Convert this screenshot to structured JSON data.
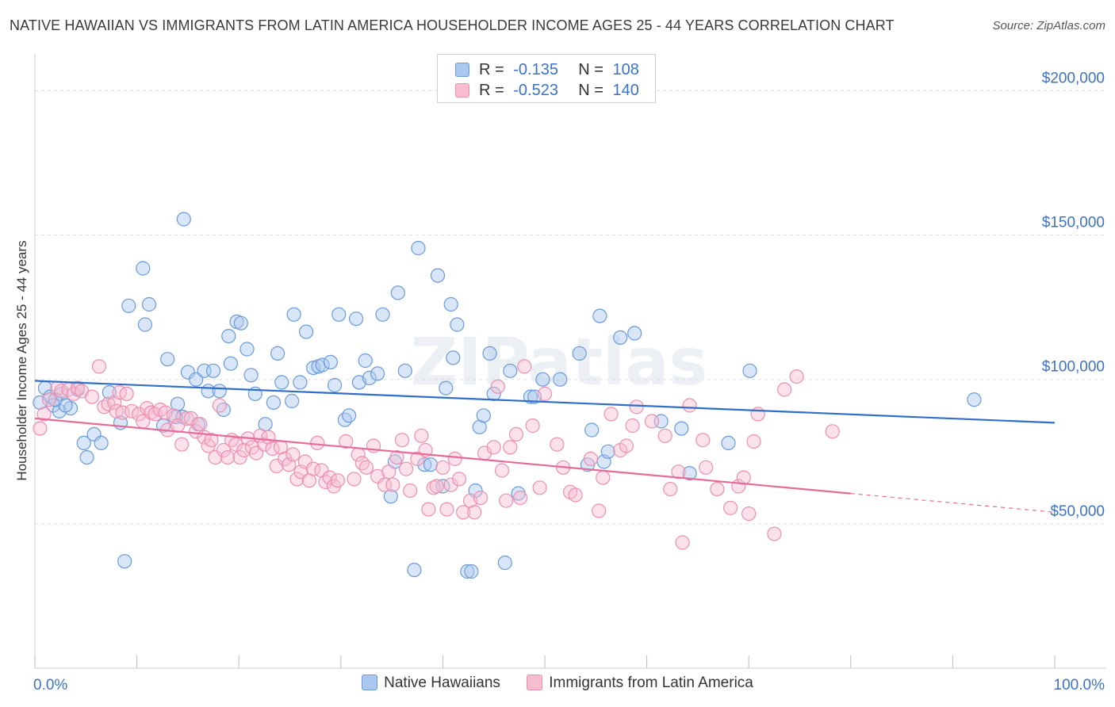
{
  "title": "NATIVE HAWAIIAN VS IMMIGRANTS FROM LATIN AMERICA HOUSEHOLDER INCOME AGES 25 - 44 YEARS CORRELATION CHART",
  "source": "Source: ZipAtlas.com",
  "watermark": "ZIPatlas",
  "legend": {
    "r_label": "R =",
    "n_label": "N =",
    "rows": [
      {
        "r": "-0.135",
        "n": "108"
      },
      {
        "r": "-0.523",
        "n": "140"
      }
    ]
  },
  "colors": {
    "blue_fill": "#aac8ef",
    "blue_stroke": "#6a9bd8",
    "blue_line": "#2f6fc9",
    "pink_fill": "#f6bdd0",
    "pink_stroke": "#ec8fb0",
    "pink_line": "#e66b98",
    "axis_text": "#3b72c7",
    "grid": "#dddddd"
  },
  "chart_data": {
    "type": "scatter",
    "ylabel": "Householder Income Ages 25 - 44 years",
    "x_tick_labels": [
      "0.0%",
      "100.0%"
    ],
    "y_tick_labels": [
      "$50,000",
      "$100,000",
      "$150,000",
      "$200,000"
    ],
    "y_ticks": [
      50000,
      100000,
      150000,
      200000
    ],
    "xlim": [
      0,
      100
    ],
    "ylim": [
      0,
      210000
    ],
    "grid": true,
    "legend_position": "top-center",
    "series": [
      {
        "name": "Native Hawaiians",
        "r": -0.135,
        "n": 108,
        "trend": {
          "x": [
            0,
            100
          ],
          "y": [
            99500,
            85000
          ],
          "dashed_from": null
        },
        "points": [
          [
            1.0,
            97000
          ],
          [
            1.5,
            94000
          ],
          [
            1.8,
            91000
          ],
          [
            2.4,
            89000
          ],
          [
            2.6,
            95000
          ],
          [
            3.5,
            90000
          ],
          [
            4.2,
            96500
          ],
          [
            4.8,
            78000
          ],
          [
            5.1,
            73000
          ],
          [
            5.8,
            81000
          ],
          [
            6.5,
            78000
          ],
          [
            7.3,
            95500
          ],
          [
            8.4,
            85000
          ],
          [
            8.8,
            37000
          ],
          [
            9.2,
            125500
          ],
          [
            10.6,
            138500
          ],
          [
            10.8,
            119000
          ],
          [
            11.2,
            126000
          ],
          [
            12.6,
            84000
          ],
          [
            13.0,
            107000
          ],
          [
            13.8,
            87000
          ],
          [
            14.0,
            91500
          ],
          [
            14.5,
            87000
          ],
          [
            14.6,
            155500
          ],
          [
            15.0,
            102500
          ],
          [
            15.8,
            100000
          ],
          [
            16.0,
            84500
          ],
          [
            16.6,
            103000
          ],
          [
            17.0,
            96000
          ],
          [
            17.5,
            103000
          ],
          [
            18.1,
            96000
          ],
          [
            18.5,
            89500
          ],
          [
            19.0,
            115000
          ],
          [
            19.2,
            105500
          ],
          [
            19.8,
            120000
          ],
          [
            20.2,
            119500
          ],
          [
            20.8,
            110500
          ],
          [
            21.2,
            101500
          ],
          [
            21.6,
            95000
          ],
          [
            22.6,
            84500
          ],
          [
            23.4,
            92000
          ],
          [
            23.8,
            109000
          ],
          [
            24.2,
            99000
          ],
          [
            25.2,
            92500
          ],
          [
            25.4,
            122500
          ],
          [
            26.0,
            99000
          ],
          [
            26.6,
            116500
          ],
          [
            27.3,
            104000
          ],
          [
            27.8,
            104500
          ],
          [
            28.2,
            105000
          ],
          [
            29.0,
            106000
          ],
          [
            29.4,
            98000
          ],
          [
            29.8,
            122500
          ],
          [
            30.4,
            86000
          ],
          [
            30.8,
            87500
          ],
          [
            31.5,
            121000
          ],
          [
            31.8,
            99000
          ],
          [
            32.4,
            106500
          ],
          [
            32.8,
            100500
          ],
          [
            33.6,
            102000
          ],
          [
            34.1,
            122500
          ],
          [
            34.9,
            59500
          ],
          [
            35.3,
            71500
          ],
          [
            35.6,
            130000
          ],
          [
            36.3,
            103000
          ],
          [
            37.2,
            34000
          ],
          [
            37.6,
            145500
          ],
          [
            38.2,
            70500
          ],
          [
            38.8,
            70500
          ],
          [
            39.5,
            136000
          ],
          [
            40.0,
            63000
          ],
          [
            40.3,
            97000
          ],
          [
            40.8,
            126000
          ],
          [
            41.0,
            107500
          ],
          [
            41.4,
            119000
          ],
          [
            42.4,
            33500
          ],
          [
            42.8,
            33500
          ],
          [
            43.2,
            61500
          ],
          [
            43.6,
            83500
          ],
          [
            44.0,
            87500
          ],
          [
            44.6,
            109000
          ],
          [
            45.0,
            95000
          ],
          [
            46.1,
            36500
          ],
          [
            46.6,
            103000
          ],
          [
            47.4,
            60500
          ],
          [
            48.6,
            94000
          ],
          [
            49.0,
            94000
          ],
          [
            49.8,
            100000
          ],
          [
            51.5,
            100000
          ],
          [
            53.4,
            109000
          ],
          [
            54.2,
            70500
          ],
          [
            54.6,
            82500
          ],
          [
            55.4,
            122000
          ],
          [
            55.8,
            71500
          ],
          [
            56.2,
            75000
          ],
          [
            57.4,
            114500
          ],
          [
            58.8,
            116000
          ],
          [
            61.4,
            85500
          ],
          [
            63.4,
            83000
          ],
          [
            64.2,
            67500
          ],
          [
            68.0,
            78000
          ],
          [
            70.1,
            103000
          ],
          [
            92.1,
            93000
          ],
          [
            3.0,
            91000
          ],
          [
            0.5,
            92000
          ],
          [
            2.0,
            93000
          ]
        ]
      },
      {
        "name": "Immigrants from Latin America",
        "r": -0.523,
        "n": 140,
        "trend": {
          "x": [
            0,
            100
          ],
          "y": [
            86500,
            54000
          ],
          "dashed_from": 80
        },
        "points": [
          [
            0.5,
            83000
          ],
          [
            0.9,
            88000
          ],
          [
            1.4,
            93000
          ],
          [
            2.2,
            97000
          ],
          [
            2.6,
            96000
          ],
          [
            3.3,
            96500
          ],
          [
            3.8,
            95000
          ],
          [
            4.2,
            97000
          ],
          [
            4.6,
            96000
          ],
          [
            5.6,
            94000
          ],
          [
            6.3,
            104500
          ],
          [
            6.8,
            90500
          ],
          [
            7.2,
            91500
          ],
          [
            7.8,
            92000
          ],
          [
            8.0,
            89000
          ],
          [
            8.3,
            95500
          ],
          [
            8.6,
            88500
          ],
          [
            9.0,
            95000
          ],
          [
            9.5,
            89000
          ],
          [
            10.2,
            88000
          ],
          [
            10.6,
            85500
          ],
          [
            11.0,
            90000
          ],
          [
            11.4,
            88500
          ],
          [
            11.8,
            88000
          ],
          [
            12.3,
            89500
          ],
          [
            12.8,
            88500
          ],
          [
            13.0,
            82500
          ],
          [
            13.6,
            87500
          ],
          [
            14.0,
            84000
          ],
          [
            14.4,
            77500
          ],
          [
            14.9,
            86500
          ],
          [
            15.3,
            86500
          ],
          [
            15.8,
            82000
          ],
          [
            16.2,
            84500
          ],
          [
            16.6,
            80000
          ],
          [
            17.0,
            77000
          ],
          [
            17.3,
            79000
          ],
          [
            17.7,
            73000
          ],
          [
            18.1,
            91000
          ],
          [
            18.5,
            75500
          ],
          [
            18.9,
            73000
          ],
          [
            19.3,
            79000
          ],
          [
            19.7,
            77500
          ],
          [
            20.1,
            73000
          ],
          [
            20.5,
            75500
          ],
          [
            20.9,
            79500
          ],
          [
            21.3,
            76500
          ],
          [
            21.7,
            74500
          ],
          [
            22.1,
            80500
          ],
          [
            22.5,
            77500
          ],
          [
            22.9,
            80000
          ],
          [
            23.3,
            76000
          ],
          [
            23.7,
            70000
          ],
          [
            24.1,
            76500
          ],
          [
            24.5,
            72500
          ],
          [
            24.9,
            70500
          ],
          [
            25.3,
            74000
          ],
          [
            25.7,
            65500
          ],
          [
            26.1,
            68000
          ],
          [
            26.5,
            71500
          ],
          [
            26.9,
            65000
          ],
          [
            27.3,
            69000
          ],
          [
            27.7,
            78000
          ],
          [
            28.1,
            68500
          ],
          [
            28.5,
            64500
          ],
          [
            28.9,
            66000
          ],
          [
            29.3,
            63000
          ],
          [
            29.7,
            65000
          ],
          [
            30.5,
            78500
          ],
          [
            31.3,
            65500
          ],
          [
            31.7,
            74000
          ],
          [
            32.1,
            71000
          ],
          [
            32.5,
            69500
          ],
          [
            33.2,
            77000
          ],
          [
            33.6,
            66500
          ],
          [
            34.3,
            63500
          ],
          [
            34.7,
            68000
          ],
          [
            35.1,
            63500
          ],
          [
            35.5,
            73000
          ],
          [
            36.0,
            79000
          ],
          [
            36.4,
            69000
          ],
          [
            36.8,
            61500
          ],
          [
            37.5,
            72500
          ],
          [
            37.9,
            80500
          ],
          [
            38.3,
            75500
          ],
          [
            38.6,
            55000
          ],
          [
            39.1,
            62500
          ],
          [
            39.4,
            63000
          ],
          [
            40.0,
            69500
          ],
          [
            40.4,
            55000
          ],
          [
            40.8,
            63500
          ],
          [
            41.2,
            72500
          ],
          [
            41.6,
            65500
          ],
          [
            42.0,
            54000
          ],
          [
            42.7,
            58000
          ],
          [
            43.1,
            54000
          ],
          [
            43.7,
            59000
          ],
          [
            44.1,
            74500
          ],
          [
            45.0,
            76500
          ],
          [
            45.4,
            97500
          ],
          [
            45.8,
            68500
          ],
          [
            46.2,
            58000
          ],
          [
            46.6,
            76500
          ],
          [
            47.2,
            81000
          ],
          [
            47.6,
            59000
          ],
          [
            48.0,
            104500
          ],
          [
            48.8,
            84000
          ],
          [
            49.5,
            62500
          ],
          [
            50.0,
            95000
          ],
          [
            51.2,
            77500
          ],
          [
            51.8,
            69500
          ],
          [
            52.5,
            61000
          ],
          [
            53.0,
            60000
          ],
          [
            54.5,
            72500
          ],
          [
            55.3,
            54500
          ],
          [
            55.7,
            66000
          ],
          [
            56.5,
            88000
          ],
          [
            57.4,
            75500
          ],
          [
            58.0,
            77000
          ],
          [
            58.6,
            84000
          ],
          [
            59.0,
            90500
          ],
          [
            60.5,
            85500
          ],
          [
            61.8,
            80500
          ],
          [
            62.3,
            62000
          ],
          [
            63.1,
            68000
          ],
          [
            63.5,
            43500
          ],
          [
            64.2,
            91000
          ],
          [
            65.5,
            79000
          ],
          [
            65.8,
            69500
          ],
          [
            66.9,
            62000
          ],
          [
            68.2,
            55500
          ],
          [
            69.0,
            63000
          ],
          [
            69.5,
            66000
          ],
          [
            70.0,
            53500
          ],
          [
            70.5,
            78500
          ],
          [
            72.5,
            46500
          ],
          [
            70.9,
            88000
          ],
          [
            73.5,
            96500
          ],
          [
            74.7,
            101000
          ],
          [
            78.2,
            82000
          ]
        ]
      }
    ]
  }
}
